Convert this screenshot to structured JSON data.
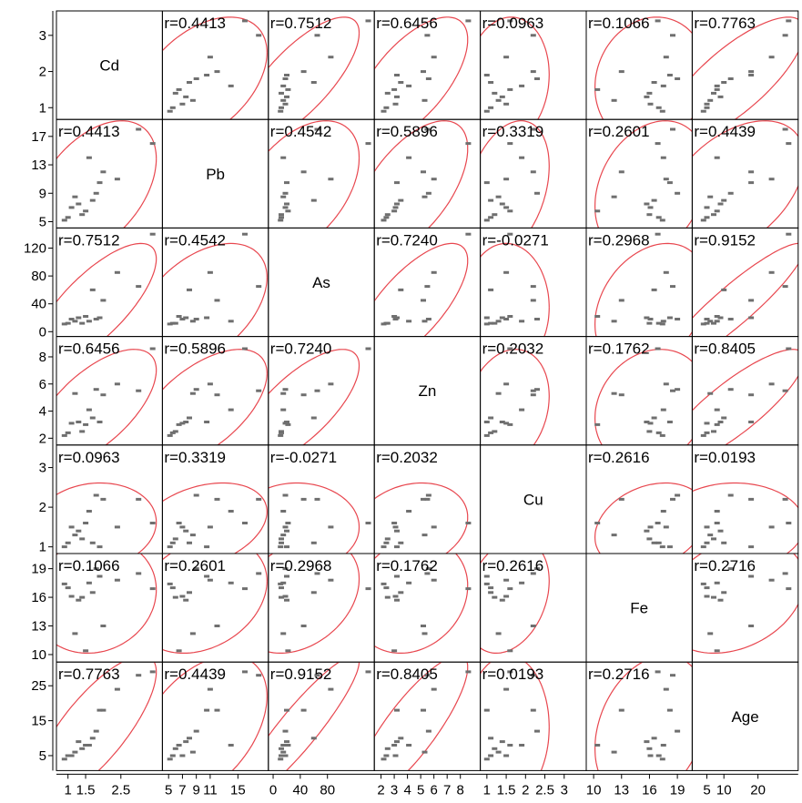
{
  "chart_data": {
    "type": "scatter",
    "title": "",
    "variables": [
      {
        "name": "Cd",
        "ticks": [
          1,
          2,
          3
        ],
        "tick_labels": [
          "1",
          "2",
          "3"
        ],
        "x_tick_labels": [
          "1",
          "1.5",
          "2.5"
        ],
        "x_ticks": [
          1,
          1.5,
          2.5
        ],
        "range": [
          0.75,
          3.6
        ]
      },
      {
        "name": "Pb",
        "ticks": [
          5,
          9,
          13,
          17
        ],
        "tick_labels": [
          "5",
          "9",
          "13",
          "17"
        ],
        "x_tick_labels": [
          "5",
          "7",
          "9",
          "11",
          "15"
        ],
        "x_ticks": [
          5,
          7,
          9,
          11,
          15
        ],
        "range": [
          4.5,
          19.0
        ]
      },
      {
        "name": "As",
        "ticks": [
          0,
          40,
          80,
          120
        ],
        "tick_labels": [
          "0",
          "40",
          "80",
          "120"
        ],
        "x_tick_labels": [
          "0",
          "40",
          "80"
        ],
        "x_ticks": [
          0,
          40,
          80
        ],
        "range": [
          -3,
          145
        ]
      },
      {
        "name": "Zn",
        "ticks": [
          2,
          4,
          6,
          8
        ],
        "tick_labels": [
          "2",
          "4",
          "6",
          "8"
        ],
        "x_tick_labels": [
          "2",
          "3",
          "4",
          "5",
          "6",
          "7",
          "8"
        ],
        "x_ticks": [
          2,
          3,
          4,
          5,
          6,
          7,
          8
        ],
        "range": [
          1.7,
          9.3
        ]
      },
      {
        "name": "Cu",
        "ticks": [
          1,
          2,
          3
        ],
        "tick_labels": [
          "1",
          "2",
          "3"
        ],
        "x_tick_labels": [
          "1",
          "1.5",
          "2",
          "2.5",
          "3"
        ],
        "x_ticks": [
          1,
          1.5,
          2,
          2.5,
          3
        ],
        "range": [
          0.9,
          3.5
        ]
      },
      {
        "name": "Fe",
        "ticks": [
          10,
          13,
          16,
          19
        ],
        "tick_labels": [
          "10",
          "13",
          "16",
          "19"
        ],
        "x_tick_labels": [
          "10",
          "13",
          "16",
          "19"
        ],
        "x_ticks": [
          10,
          13,
          16,
          19
        ],
        "range": [
          9.5,
          20.3
        ]
      },
      {
        "name": "Age",
        "ticks": [
          5,
          15,
          25
        ],
        "tick_labels": [
          "5",
          "15",
          "25"
        ],
        "x_tick_labels": [
          "5",
          "10",
          "20"
        ],
        "x_ticks": [
          5,
          10,
          20
        ],
        "range": [
          1.5,
          31
        ]
      }
    ],
    "correlations": [
      [
        null,
        "r=0.4413",
        "r=0.7512",
        "r=0.6456",
        "r=0.0963",
        "r=0.1066",
        "r=0.7763"
      ],
      [
        "r=0.4413",
        null,
        "r=0.4542",
        "r=0.5896",
        "r=0.3319",
        "r=0.2601",
        "r=0.4439"
      ],
      [
        "r=0.7512",
        "r=0.4542",
        null,
        "r=0.7240",
        "r=-0.0271",
        "r=0.2968",
        "r=0.9152"
      ],
      [
        "r=0.6456",
        "r=0.5896",
        "r=0.7240",
        null,
        "r=0.2032",
        "r=0.1762",
        "r=0.8405"
      ],
      [
        "r=0.0963",
        "r=0.3319",
        "r=-0.0271",
        "r=0.2032",
        null,
        "r=0.2616",
        "r=0.0193"
      ],
      [
        "r=0.1066",
        "r=0.2601",
        "r=0.2968",
        "r=0.1762",
        "r=0.2616",
        null,
        "r=0.2716"
      ],
      [
        "r=0.7763",
        "r=0.4439",
        "r=0.9152",
        "r=0.8405",
        "r=0.0193",
        "r=0.2716",
        null
      ]
    ],
    "observations": [
      {
        "Cd": 3.4,
        "Pb": 16.0,
        "As": 140,
        "Zn": 8.6,
        "Cu": 1.6,
        "Fe": 16.9,
        "Age": 29
      },
      {
        "Cd": 3.0,
        "Pb": 18.0,
        "As": 65,
        "Zn": 5.5,
        "Cu": 2.2,
        "Fe": 18.5,
        "Age": 28
      },
      {
        "Cd": 2.4,
        "Pb": 11.0,
        "As": 85,
        "Zn": 6.0,
        "Cu": 1.5,
        "Fe": 17.8,
        "Age": 24
      },
      {
        "Cd": 2.0,
        "Pb": 12.0,
        "As": 45,
        "Zn": 5.2,
        "Cu": 2.2,
        "Fe": 13.0,
        "Age": 18
      },
      {
        "Cd": 1.9,
        "Pb": 10.5,
        "As": 20,
        "Zn": 3.2,
        "Cu": 1.0,
        "Fe": 18.2,
        "Age": 18
      },
      {
        "Cd": 1.8,
        "Pb": 9.0,
        "As": 18,
        "Zn": 5.6,
        "Cu": 2.3,
        "Fe": 19.0,
        "Age": 12
      },
      {
        "Cd": 1.7,
        "Pb": 8.0,
        "As": 60,
        "Zn": 3.5,
        "Cu": 1.1,
        "Fe": 16.5,
        "Age": 10
      },
      {
        "Cd": 1.6,
        "Pb": 14.0,
        "As": 15,
        "Zn": 4.1,
        "Cu": 1.9,
        "Fe": 17.5,
        "Age": 8
      },
      {
        "Cd": 1.5,
        "Pb": 6.5,
        "As": 22,
        "Zn": 3.0,
        "Cu": 1.6,
        "Fe": 10.4,
        "Age": 8
      },
      {
        "Cd": 1.4,
        "Pb": 6.0,
        "As": 12,
        "Zn": 2.5,
        "Cu": 1.2,
        "Fe": 16.0,
        "Age": 7
      },
      {
        "Cd": 1.2,
        "Pb": 8.5,
        "As": 15,
        "Zn": 5.3,
        "Cu": 1.3,
        "Fe": 12.2,
        "Age": 6
      },
      {
        "Cd": 1.1,
        "Pb": 7.0,
        "As": 18,
        "Zn": 3.1,
        "Cu": 1.5,
        "Fe": 16.1,
        "Age": 5
      },
      {
        "Cd": 1.0,
        "Pb": 5.6,
        "As": 12,
        "Zn": 2.4,
        "Cu": 1.1,
        "Fe": 17.0,
        "Age": 5
      },
      {
        "Cd": 0.9,
        "Pb": 5.2,
        "As": 11,
        "Zn": 2.2,
        "Cu": 1.0,
        "Fe": 17.4,
        "Age": 4
      },
      {
        "Cd": 1.3,
        "Pb": 7.5,
        "As": 20,
        "Zn": 3.2,
        "Cu": 1.4,
        "Fe": 15.7,
        "Age": 9
      }
    ],
    "ellipse_color": "#e8474f",
    "point_color": "#6f6f6f",
    "grid": false
  }
}
